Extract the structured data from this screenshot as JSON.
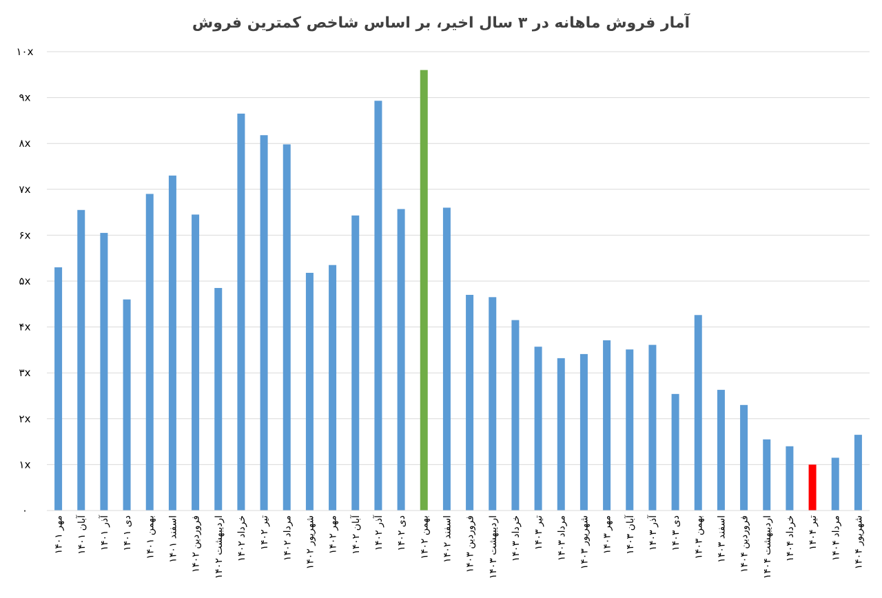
{
  "chart_data": {
    "type": "bar",
    "title": "آمار فروش ماهانه در ۳ سال اخیر، بر اساس شاخص کمترین فروش",
    "xlabel": "",
    "ylabel": "",
    "ylim": [
      0,
      10
    ],
    "yticks": [
      "۰",
      "۱x",
      "۲x",
      "۳x",
      "۴x",
      "۵x",
      "۶x",
      "۷x",
      "۸x",
      "۹x",
      "۱۰x"
    ],
    "grid": true,
    "legend": "none",
    "categories": [
      "مهر ۱۴۰۱",
      "آبان ۱۴۰۱",
      "آذر ۱۴۰۱",
      "دی ۱۴۰۱",
      "بهمن ۱۴۰۱",
      "اسفند ۱۴۰۱",
      "فروردین ۱۴۰۲",
      "اردیبهشت ۱۴۰۲",
      "خرداد ۱۴۰۲",
      "تیر ۱۴۰۲",
      "مرداد ۱۴۰۲",
      "شهریور ۱۴۰۲",
      "مهر ۱۴۰۲",
      "آبان ۱۴۰۲",
      "آذر ۱۴۰۲",
      "دی ۱۴۰۲",
      "بهمن ۱۴۰۲",
      "اسفند ۱۴۰۲",
      "فروردین ۱۴۰۳",
      "اردیبهشت ۱۴۰۳",
      "خرداد ۱۴۰۳",
      "تیر ۱۴۰۳",
      "مرداد ۱۴۰۳",
      "شهریور ۱۴۰۳",
      "مهر ۱۴۰۳",
      "آبان ۱۴۰۳",
      "آذر ۱۴۰۳",
      "دی ۱۴۰۳",
      "بهمن ۱۴۰۳",
      "اسفند ۱۴۰۳",
      "فروردین ۱۴۰۴",
      "اردیبهشت ۱۴۰۴",
      "خرداد ۱۴۰۴",
      "تیر ۱۴۰۴",
      "مرداد ۱۴۰۴",
      "شهریور ۱۴۰۴"
    ],
    "values": [
      5.3,
      6.55,
      6.05,
      4.6,
      6.9,
      7.3,
      6.45,
      4.85,
      8.65,
      8.18,
      7.98,
      5.18,
      5.35,
      6.43,
      8.93,
      6.57,
      9.6,
      6.6,
      4.7,
      4.65,
      4.15,
      3.57,
      3.32,
      3.41,
      3.71,
      3.51,
      3.61,
      2.54,
      4.26,
      2.63,
      2.3,
      1.55,
      1.4,
      1.0,
      1.15,
      1.65
    ],
    "colors": {
      "default": "#5b9bd5",
      "highlight_max": "#70ad47",
      "highlight_min": "#ff0000",
      "grid": "#d9d9d9",
      "title": "#404040"
    },
    "highlight_max_index": 16,
    "highlight_min_index": 33
  }
}
